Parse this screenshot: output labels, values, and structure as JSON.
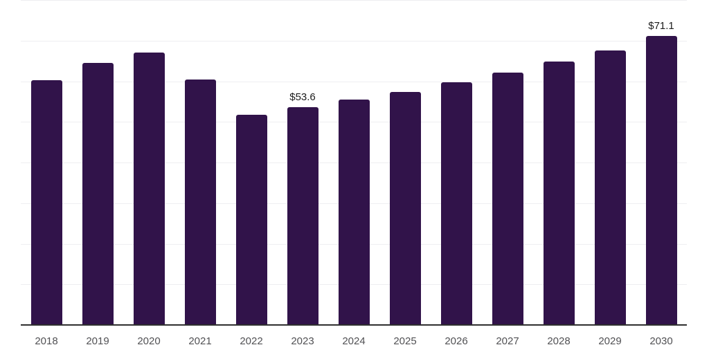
{
  "chart_data": {
    "type": "bar",
    "categories": [
      "2018",
      "2019",
      "2020",
      "2021",
      "2022",
      "2023",
      "2024",
      "2025",
      "2026",
      "2027",
      "2028",
      "2029",
      "2030"
    ],
    "values": [
      60.3,
      64.5,
      67.0,
      60.4,
      51.7,
      53.6,
      55.5,
      57.4,
      59.7,
      62.1,
      64.8,
      67.6,
      71.1
    ],
    "data_labels": [
      "",
      "",
      "",
      "",
      "",
      "$53.6",
      "",
      "",
      "",
      "",
      "",
      "",
      "$71.1"
    ],
    "title": "",
    "xlabel": "",
    "ylabel": "",
    "ylim": [
      0,
      80
    ],
    "gridline_step": 10,
    "grid": true,
    "y_tick_labels_visible": false,
    "legend": "none",
    "colors": {
      "bar": "#31134a",
      "gridline": "#eeeef1",
      "axis_line": "#2f2f2f",
      "tick_label": "#515154",
      "data_label": "#1b1b1b",
      "background": "#ffffff"
    }
  }
}
